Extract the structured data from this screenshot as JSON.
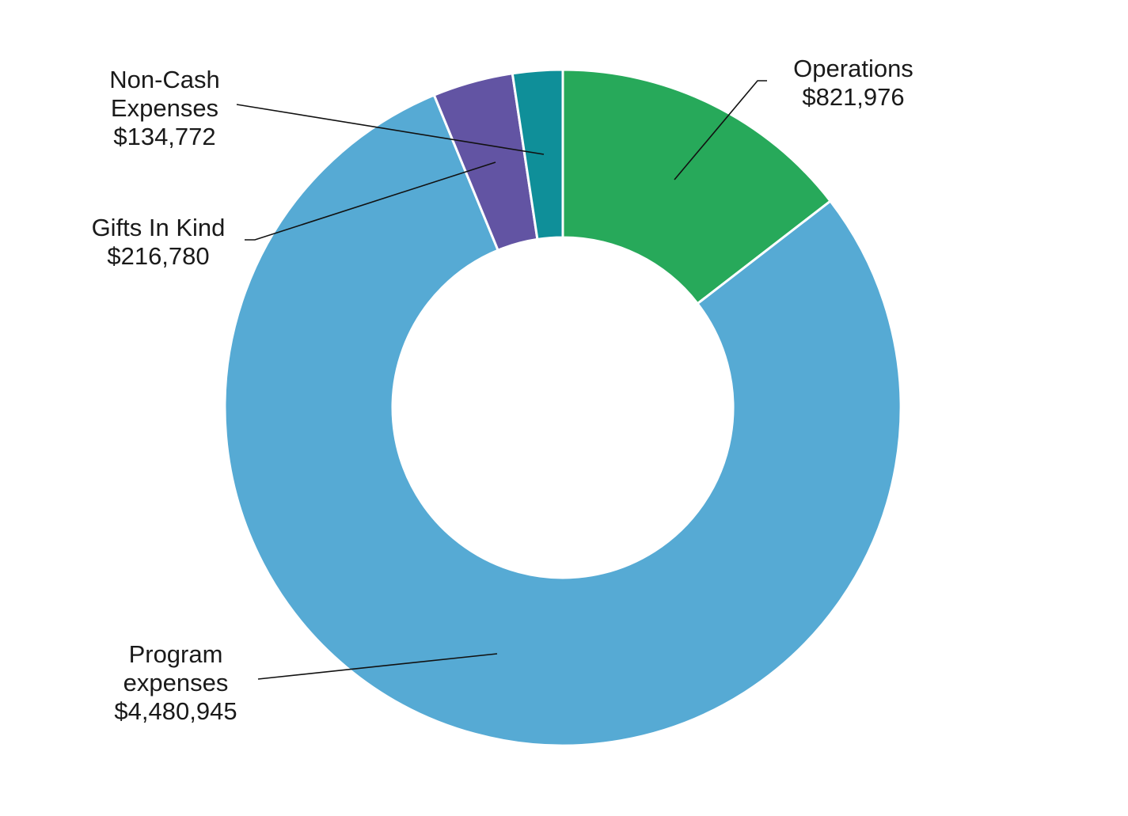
{
  "chart_data": {
    "type": "pie",
    "style": "donut",
    "title": "",
    "slices": [
      {
        "name": "Operations",
        "label_lines": [
          "Operations"
        ],
        "amount_label": "$821,976",
        "value": 821976,
        "color": "#27a95a"
      },
      {
        "name": "Program expenses",
        "label_lines": [
          "Program",
          "expenses"
        ],
        "amount_label": "$4,480,945",
        "value": 4480945,
        "color": "#56aad4"
      },
      {
        "name": "Gifts In Kind",
        "label_lines": [
          "Gifts In Kind"
        ],
        "amount_label": "$216,780",
        "value": 216780,
        "color": "#6254a3"
      },
      {
        "name": "Non-Cash Expenses",
        "label_lines": [
          "Non-Cash",
          "Expenses"
        ],
        "amount_label": "$134,772",
        "value": 134772,
        "color": "#0f8f99"
      }
    ],
    "legend": "none",
    "label_placement": "outside with leader lines"
  }
}
